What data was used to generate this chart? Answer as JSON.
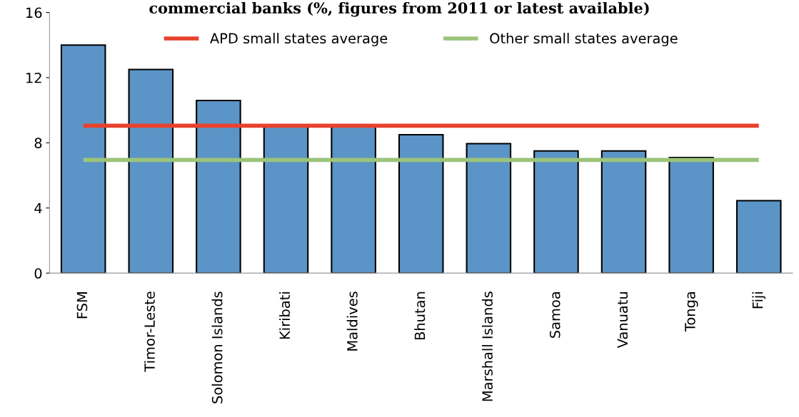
{
  "chart_data": {
    "type": "bar",
    "title": "commercial banks (%, figures from 2011 or latest available)",
    "categories": [
      "FSM",
      "Timor-Leste",
      "Solomon Islands",
      "Kiribati",
      "Maldives",
      "Bhutan",
      "Marshall Islands",
      "Samoa",
      "Vanuatu",
      "Tonga",
      "Fiji"
    ],
    "series": [
      {
        "color": "#5b94c6",
        "values": [
          14.0,
          12.5,
          10.6,
          9.0,
          9.0,
          8.5,
          7.95,
          7.5,
          7.5,
          7.1,
          4.45
        ]
      },
      {
        "type": "line",
        "name": "APD small states average",
        "color": "#e8412e",
        "values": [
          9.05,
          9.05,
          9.05,
          9.05,
          9.05,
          9.05,
          9.05,
          9.05,
          9.05,
          9.05,
          9.05
        ]
      },
      {
        "type": "line",
        "name": "Other small states average",
        "color": "#9bc47a",
        "values": [
          6.95,
          6.95,
          6.95,
          6.95,
          6.95,
          6.95,
          6.95,
          6.95,
          6.95,
          6.95,
          6.95
        ]
      }
    ],
    "ylim": [
      0,
      16
    ],
    "yticks": [
      0,
      4,
      8,
      12,
      16
    ],
    "grid": false,
    "legend": "top"
  }
}
